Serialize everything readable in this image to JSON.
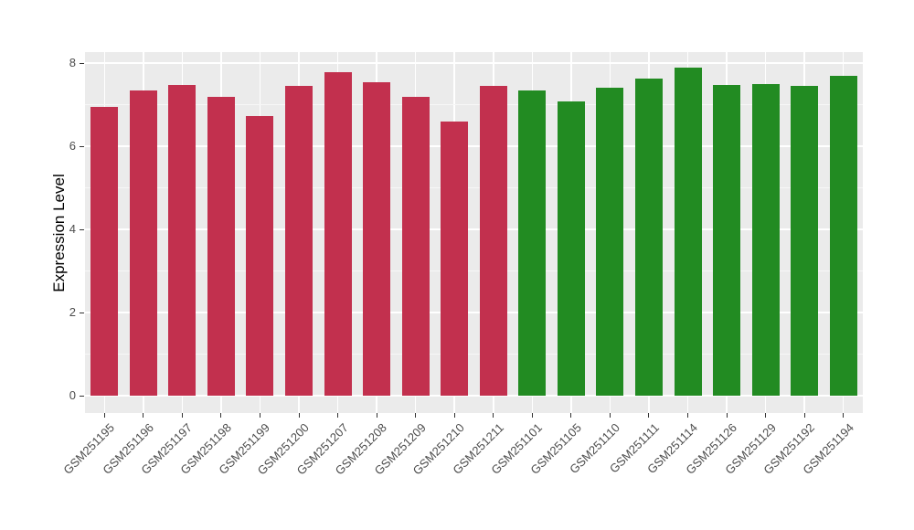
{
  "chart_data": {
    "type": "bar",
    "title": "",
    "xlabel": "",
    "ylabel": "Expression Level",
    "categories": [
      "GSM251195",
      "GSM251196",
      "GSM251197",
      "GSM251198",
      "GSM251199",
      "GSM251200",
      "GSM251207",
      "GSM251208",
      "GSM251209",
      "GSM251210",
      "GSM251211",
      "GSM251101",
      "GSM251105",
      "GSM251110",
      "GSM251111",
      "GSM251114",
      "GSM251126",
      "GSM251129",
      "GSM251192",
      "GSM251194"
    ],
    "values": [
      6.95,
      7.34,
      7.47,
      7.18,
      6.72,
      7.45,
      7.79,
      7.54,
      7.18,
      6.59,
      7.46,
      7.34,
      7.08,
      7.41,
      7.63,
      7.88,
      7.48,
      7.49,
      7.44,
      7.69
    ],
    "bar_groups": [
      "group1",
      "group1",
      "group1",
      "group1",
      "group1",
      "group1",
      "group1",
      "group1",
      "group1",
      "group1",
      "group1",
      "group2",
      "group2",
      "group2",
      "group2",
      "group2",
      "group2",
      "group2",
      "group2",
      "group2"
    ],
    "group_colors": {
      "group1": "#C2304E",
      "group2": "#228B22"
    },
    "yticks": [
      0,
      2,
      4,
      6,
      8
    ],
    "minor_yticks": [
      1,
      3,
      5,
      7
    ],
    "ylim": [
      -0.42,
      8.27
    ],
    "grid": true,
    "legend": "none",
    "x_tick_rotation_degrees": 45,
    "colors": {
      "background": "#FFFFFF",
      "panel_bg": "#EBEBEB",
      "grid_major": "#FFFFFF",
      "grid_minor": "#F7F7F7",
      "tick_mark": "#333333",
      "axis_text": "#4D4D4D",
      "axis_title": "#000000"
    }
  }
}
